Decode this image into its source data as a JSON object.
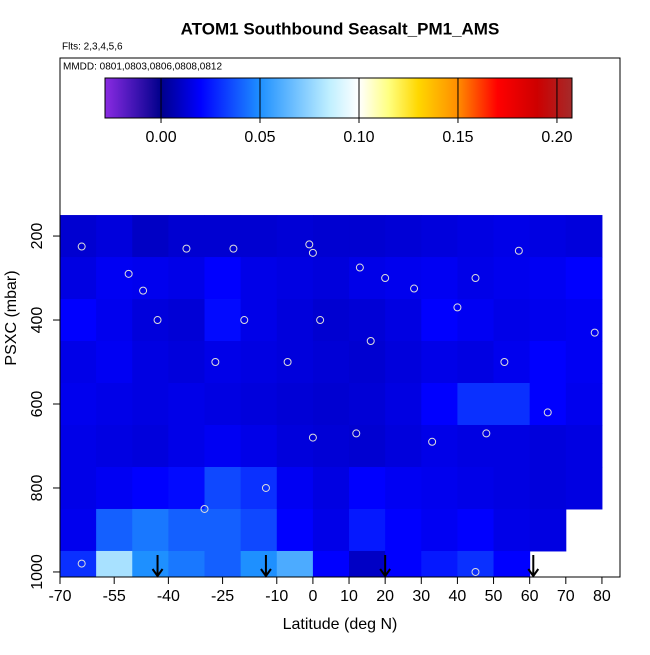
{
  "chart_data": {
    "type": "heatmap",
    "title": "ATOM1 Southbound Seasalt_PM1_AMS",
    "subtitle": "Flts: 2,3,4,5,6",
    "annotation": "MMDD: 0801,0803,0806,0808,0812",
    "x_label": "Latitude (deg N)",
    "y_label": "PSXC (mbar)",
    "xlim": [
      -70,
      85
    ],
    "ylim": [
      1012,
      -224
    ],
    "xticks": [
      -70,
      -55,
      -40,
      -25,
      -10,
      0,
      10,
      20,
      30,
      40,
      50,
      60,
      70,
      80
    ],
    "yticks": [
      200,
      400,
      600,
      800,
      1000
    ],
    "x": [
      -65,
      -55,
      -45,
      -35,
      -25,
      -15,
      -5,
      5,
      15,
      25,
      35,
      45,
      55,
      65,
      75
    ],
    "y": [
      200,
      300,
      400,
      500,
      600,
      700,
      800,
      900,
      1000
    ],
    "z": [
      [
        0.012,
        0.014,
        0.01,
        0.012,
        0.012,
        0.012,
        0.013,
        0.012,
        0.012,
        0.013,
        0.014,
        0.015,
        0.016,
        0.015,
        0.014
      ],
      [
        0.015,
        0.018,
        0.017,
        0.016,
        0.02,
        0.016,
        0.015,
        0.014,
        0.016,
        0.017,
        0.018,
        0.016,
        0.017,
        0.018,
        0.02
      ],
      [
        0.02,
        0.017,
        0.014,
        0.013,
        0.022,
        0.016,
        0.014,
        0.012,
        0.013,
        0.015,
        0.02,
        0.018,
        0.016,
        0.017,
        0.018
      ],
      [
        0.016,
        0.018,
        0.015,
        0.014,
        0.016,
        0.015,
        0.014,
        0.013,
        0.012,
        0.014,
        0.016,
        0.015,
        0.017,
        0.02,
        0.018
      ],
      [
        0.017,
        0.016,
        0.015,
        0.016,
        0.015,
        0.014,
        0.013,
        0.012,
        0.013,
        0.015,
        0.02,
        0.03,
        0.03,
        0.02,
        0.017
      ],
      [
        0.016,
        0.015,
        0.014,
        0.016,
        0.018,
        0.016,
        0.014,
        0.013,
        0.012,
        0.014,
        0.016,
        0.015,
        0.015,
        0.014,
        0.015
      ],
      [
        0.016,
        0.018,
        0.02,
        0.022,
        0.035,
        0.03,
        0.018,
        0.015,
        0.02,
        0.018,
        0.017,
        0.016,
        0.015,
        0.014,
        0.015
      ],
      [
        0.017,
        0.04,
        0.045,
        0.04,
        0.04,
        0.035,
        0.02,
        0.016,
        0.025,
        0.02,
        0.018,
        0.02,
        0.016,
        0.015,
        null
      ],
      [
        0.03,
        0.08,
        0.05,
        0.045,
        0.04,
        0.05,
        0.06,
        0.02,
        0.01,
        0.02,
        0.025,
        0.03,
        0.02,
        null,
        null
      ]
    ],
    "clim": [
      -0.0283,
      0.2076
    ],
    "cticks": [
      {
        "value": 0,
        "label": "0.00"
      },
      {
        "value": 0.05,
        "label": "0.05"
      },
      {
        "value": 0.1,
        "label": "0.10"
      },
      {
        "value": 0.15,
        "label": "0.15"
      },
      {
        "value": 0.2,
        "label": "0.20"
      }
    ],
    "colorscale": [
      [
        -0.0283,
        "#8a2be2"
      ],
      [
        0,
        "#00008b"
      ],
      [
        0.02,
        "#0000ff"
      ],
      [
        0.05,
        "#1e90ff"
      ],
      [
        0.085,
        "#bfefff"
      ],
      [
        0.1,
        "#ffffff"
      ],
      [
        0.115,
        "#ffff80"
      ],
      [
        0.13,
        "#ffd700"
      ],
      [
        0.15,
        "#ff8c00"
      ],
      [
        0.17,
        "#ff0000"
      ],
      [
        0.19,
        "#cd0000"
      ],
      [
        0.2076,
        "#a52a2a"
      ]
    ],
    "points": {
      "x": [
        -64,
        -51,
        -47,
        -43,
        -35,
        -27,
        -22,
        -19,
        -13,
        -7,
        -1,
        0,
        2,
        12,
        13,
        16,
        20,
        28,
        33,
        40,
        45,
        48,
        53,
        57,
        65,
        78,
        -64,
        -30,
        0,
        45
      ],
      "y": [
        225,
        290,
        330,
        400,
        230,
        500,
        230,
        400,
        800,
        500,
        220,
        240,
        400,
        670,
        275,
        450,
        300,
        325,
        690,
        370,
        300,
        670,
        500,
        235,
        620,
        430,
        980,
        850,
        680,
        1000
      ]
    },
    "arrows": [
      -43,
      -13,
      20,
      61
    ]
  }
}
